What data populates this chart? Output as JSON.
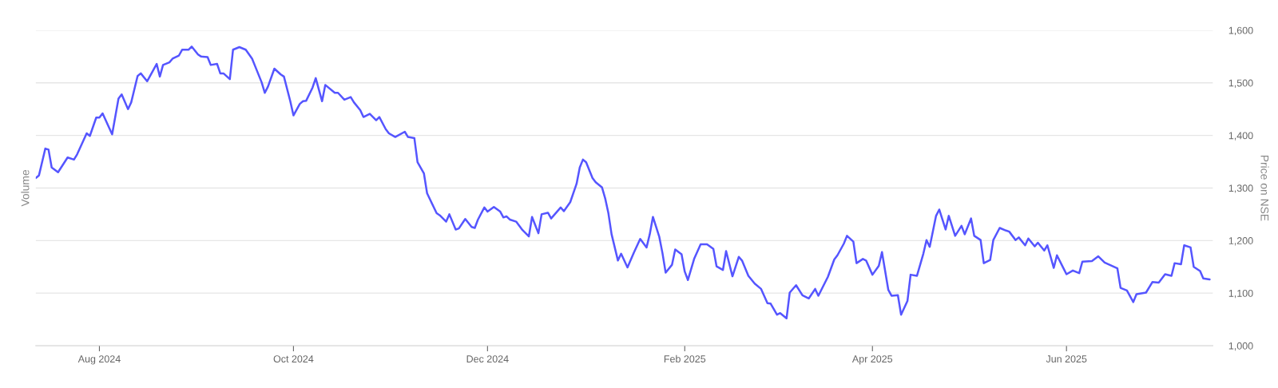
{
  "chart_data": {
    "type": "line",
    "ylabel": "Volume",
    "y2label": "Price on NSE",
    "xlim": [
      "2024-07-12",
      "2025-07-17"
    ],
    "xticks": [
      {
        "value": "2024-08-01",
        "label": "Aug 2024"
      },
      {
        "value": "2024-10-01",
        "label": "Oct 2024"
      },
      {
        "value": "2024-12-01",
        "label": "Dec 2024"
      },
      {
        "value": "2025-02-01",
        "label": "Feb 2025"
      },
      {
        "value": "2025-04-01",
        "label": "Apr 2025"
      },
      {
        "value": "2025-06-01",
        "label": "Jun 2025"
      }
    ],
    "y2lim": [
      1000,
      1600
    ],
    "y2ticks": [
      {
        "value": 1000,
        "label": "1,000"
      },
      {
        "value": 1100,
        "label": "1,100"
      },
      {
        "value": 1200,
        "label": "1,200"
      },
      {
        "value": 1300,
        "label": "1,300"
      },
      {
        "value": 1400,
        "label": "1,400"
      },
      {
        "value": 1500,
        "label": "1,500"
      },
      {
        "value": 1600,
        "label": "1,600"
      }
    ],
    "grid": "y",
    "legend": false,
    "series": [
      {
        "color": "#5555ff",
        "axis": "y2",
        "x": [
          "2024-07-12",
          "2024-07-13",
          "2024-07-15",
          "2024-07-16",
          "2024-07-17",
          "2024-07-19",
          "2024-07-22",
          "2024-07-24",
          "2024-07-25",
          "2024-07-28",
          "2024-07-29",
          "2024-07-31",
          "2024-08-01",
          "2024-08-02",
          "2024-08-05",
          "2024-08-07",
          "2024-08-08",
          "2024-08-10",
          "2024-08-11",
          "2024-08-13",
          "2024-08-14",
          "2024-08-16",
          "2024-08-19",
          "2024-08-20",
          "2024-08-21",
          "2024-08-23",
          "2024-08-24",
          "2024-08-26",
          "2024-08-27",
          "2024-08-29",
          "2024-08-30",
          "2024-09-01",
          "2024-09-02",
          "2024-09-04",
          "2024-09-05",
          "2024-09-07",
          "2024-09-08",
          "2024-09-09",
          "2024-09-11",
          "2024-09-12",
          "2024-09-14",
          "2024-09-16",
          "2024-09-18",
          "2024-09-19",
          "2024-09-21",
          "2024-09-22",
          "2024-09-23",
          "2024-09-25",
          "2024-09-27",
          "2024-09-28",
          "2024-09-30",
          "2024-10-01",
          "2024-10-03",
          "2024-10-04",
          "2024-10-05",
          "2024-10-07",
          "2024-10-08",
          "2024-10-10",
          "2024-10-11",
          "2024-10-14",
          "2024-10-15",
          "2024-10-17",
          "2024-10-19",
          "2024-10-20",
          "2024-10-22",
          "2024-10-23",
          "2024-10-25",
          "2024-10-27",
          "2024-10-28",
          "2024-10-30",
          "2024-10-31",
          "2024-11-02",
          "2024-11-05",
          "2024-11-06",
          "2024-11-08",
          "2024-11-09",
          "2024-11-11",
          "2024-11-12",
          "2024-11-15",
          "2024-11-16",
          "2024-11-18",
          "2024-11-19",
          "2024-11-21",
          "2024-11-22",
          "2024-11-24",
          "2024-11-26",
          "2024-11-27",
          "2024-11-28",
          "2024-11-30",
          "2024-12-01",
          "2024-12-03",
          "2024-12-05",
          "2024-12-06",
          "2024-12-07",
          "2024-12-08",
          "2024-12-10",
          "2024-12-12",
          "2024-12-14",
          "2024-12-15",
          "2024-12-17",
          "2024-12-18",
          "2024-12-20",
          "2024-12-21",
          "2024-12-24",
          "2024-12-25",
          "2024-12-27",
          "2024-12-29",
          "2024-12-30",
          "2024-12-31",
          "2025-01-01",
          "2025-01-03",
          "2025-01-04",
          "2025-01-06",
          "2025-01-07",
          "2025-01-08",
          "2025-01-09",
          "2025-01-11",
          "2025-01-12",
          "2025-01-14",
          "2025-01-16",
          "2025-01-18",
          "2025-01-20",
          "2025-01-21",
          "2025-01-22",
          "2025-01-24",
          "2025-01-25",
          "2025-01-26",
          "2025-01-28",
          "2025-01-29",
          "2025-01-31",
          "2025-02-01",
          "2025-02-02",
          "2025-02-04",
          "2025-02-06",
          "2025-02-08",
          "2025-02-10",
          "2025-02-11",
          "2025-02-13",
          "2025-02-14",
          "2025-02-16",
          "2025-02-18",
          "2025-02-19",
          "2025-02-21",
          "2025-02-23",
          "2025-02-25",
          "2025-02-27",
          "2025-02-28",
          "2025-03-02",
          "2025-03-03",
          "2025-03-05",
          "2025-03-06",
          "2025-03-08",
          "2025-03-10",
          "2025-03-12",
          "2025-03-14",
          "2025-03-15",
          "2025-03-18",
          "2025-03-20",
          "2025-03-21",
          "2025-03-23",
          "2025-03-24",
          "2025-03-26",
          "2025-03-27",
          "2025-03-29",
          "2025-03-30",
          "2025-04-01",
          "2025-04-03",
          "2025-04-04",
          "2025-04-06",
          "2025-04-07",
          "2025-04-09",
          "2025-04-10",
          "2025-04-12",
          "2025-04-13",
          "2025-04-15",
          "2025-04-17",
          "2025-04-18",
          "2025-04-19",
          "2025-04-21",
          "2025-04-22",
          "2025-04-24",
          "2025-04-25",
          "2025-04-27",
          "2025-04-29",
          "2025-04-30",
          "2025-05-02",
          "2025-05-03",
          "2025-05-05",
          "2025-05-06",
          "2025-05-08",
          "2025-05-09",
          "2025-05-11",
          "2025-05-13",
          "2025-05-14",
          "2025-05-16",
          "2025-05-17",
          "2025-05-19",
          "2025-05-20",
          "2025-05-22",
          "2025-05-23",
          "2025-05-25",
          "2025-05-26",
          "2025-05-28",
          "2025-05-29",
          "2025-05-31",
          "2025-06-01",
          "2025-06-03",
          "2025-06-05",
          "2025-06-06",
          "2025-06-09",
          "2025-06-11",
          "2025-06-13",
          "2025-06-17",
          "2025-06-18",
          "2025-06-20",
          "2025-06-22",
          "2025-06-23",
          "2025-06-26",
          "2025-06-28",
          "2025-06-30",
          "2025-07-02",
          "2025-07-04",
          "2025-07-05",
          "2025-07-07",
          "2025-07-08",
          "2025-07-10",
          "2025-07-11",
          "2025-07-13",
          "2025-07-14",
          "2025-07-16"
        ],
        "values": [
          1319,
          1324,
          1375,
          1373,
          1339,
          1330,
          1358,
          1354,
          1364,
          1404,
          1399,
          1434,
          1434,
          1442,
          1402,
          1470,
          1478,
          1450,
          1463,
          1513,
          1518,
          1503,
          1536,
          1512,
          1534,
          1539,
          1546,
          1552,
          1563,
          1563,
          1569,
          1554,
          1550,
          1549,
          1534,
          1536,
          1518,
          1518,
          1507,
          1563,
          1568,
          1563,
          1546,
          1531,
          1501,
          1481,
          1493,
          1527,
          1516,
          1512,
          1465,
          1438,
          1460,
          1465,
          1466,
          1491,
          1509,
          1465,
          1496,
          1481,
          1481,
          1468,
          1473,
          1463,
          1448,
          1435,
          1441,
          1429,
          1435,
          1412,
          1404,
          1397,
          1407,
          1397,
          1395,
          1349,
          1328,
          1290,
          1252,
          1248,
          1236,
          1250,
          1221,
          1223,
          1241,
          1226,
          1224,
          1240,
          1263,
          1255,
          1264,
          1255,
          1244,
          1246,
          1240,
          1236,
          1220,
          1208,
          1245,
          1214,
          1250,
          1253,
          1242,
          1263,
          1256,
          1273,
          1308,
          1339,
          1354,
          1349,
          1319,
          1311,
          1301,
          1280,
          1252,
          1212,
          1162,
          1175,
          1149,
          1177,
          1203,
          1187,
          1212,
          1245,
          1207,
          1176,
          1139,
          1154,
          1183,
          1174,
          1141,
          1125,
          1166,
          1193,
          1193,
          1184,
          1151,
          1144,
          1180,
          1132,
          1169,
          1162,
          1133,
          1118,
          1108,
          1081,
          1080,
          1059,
          1062,
          1052,
          1101,
          1115,
          1096,
          1090,
          1108,
          1095,
          1131,
          1164,
          1172,
          1194,
          1209,
          1198,
          1157,
          1165,
          1162,
          1135,
          1152,
          1178,
          1106,
          1095,
          1096,
          1059,
          1085,
          1135,
          1133,
          1175,
          1201,
          1188,
          1247,
          1259,
          1221,
          1247,
          1209,
          1228,
          1212,
          1242,
          1209,
          1201,
          1157,
          1163,
          1201,
          1224,
          1219,
          1217,
          1201,
          1206,
          1191,
          1204,
          1189,
          1196,
          1181,
          1191,
          1148,
          1172,
          1148,
          1136,
          1143,
          1138,
          1160,
          1161,
          1170,
          1158,
          1147,
          1110,
          1105,
          1083,
          1098,
          1101,
          1121,
          1120,
          1136,
          1133,
          1157,
          1155,
          1191,
          1187,
          1150,
          1142,
          1128,
          1126
        ]
      }
    ]
  }
}
